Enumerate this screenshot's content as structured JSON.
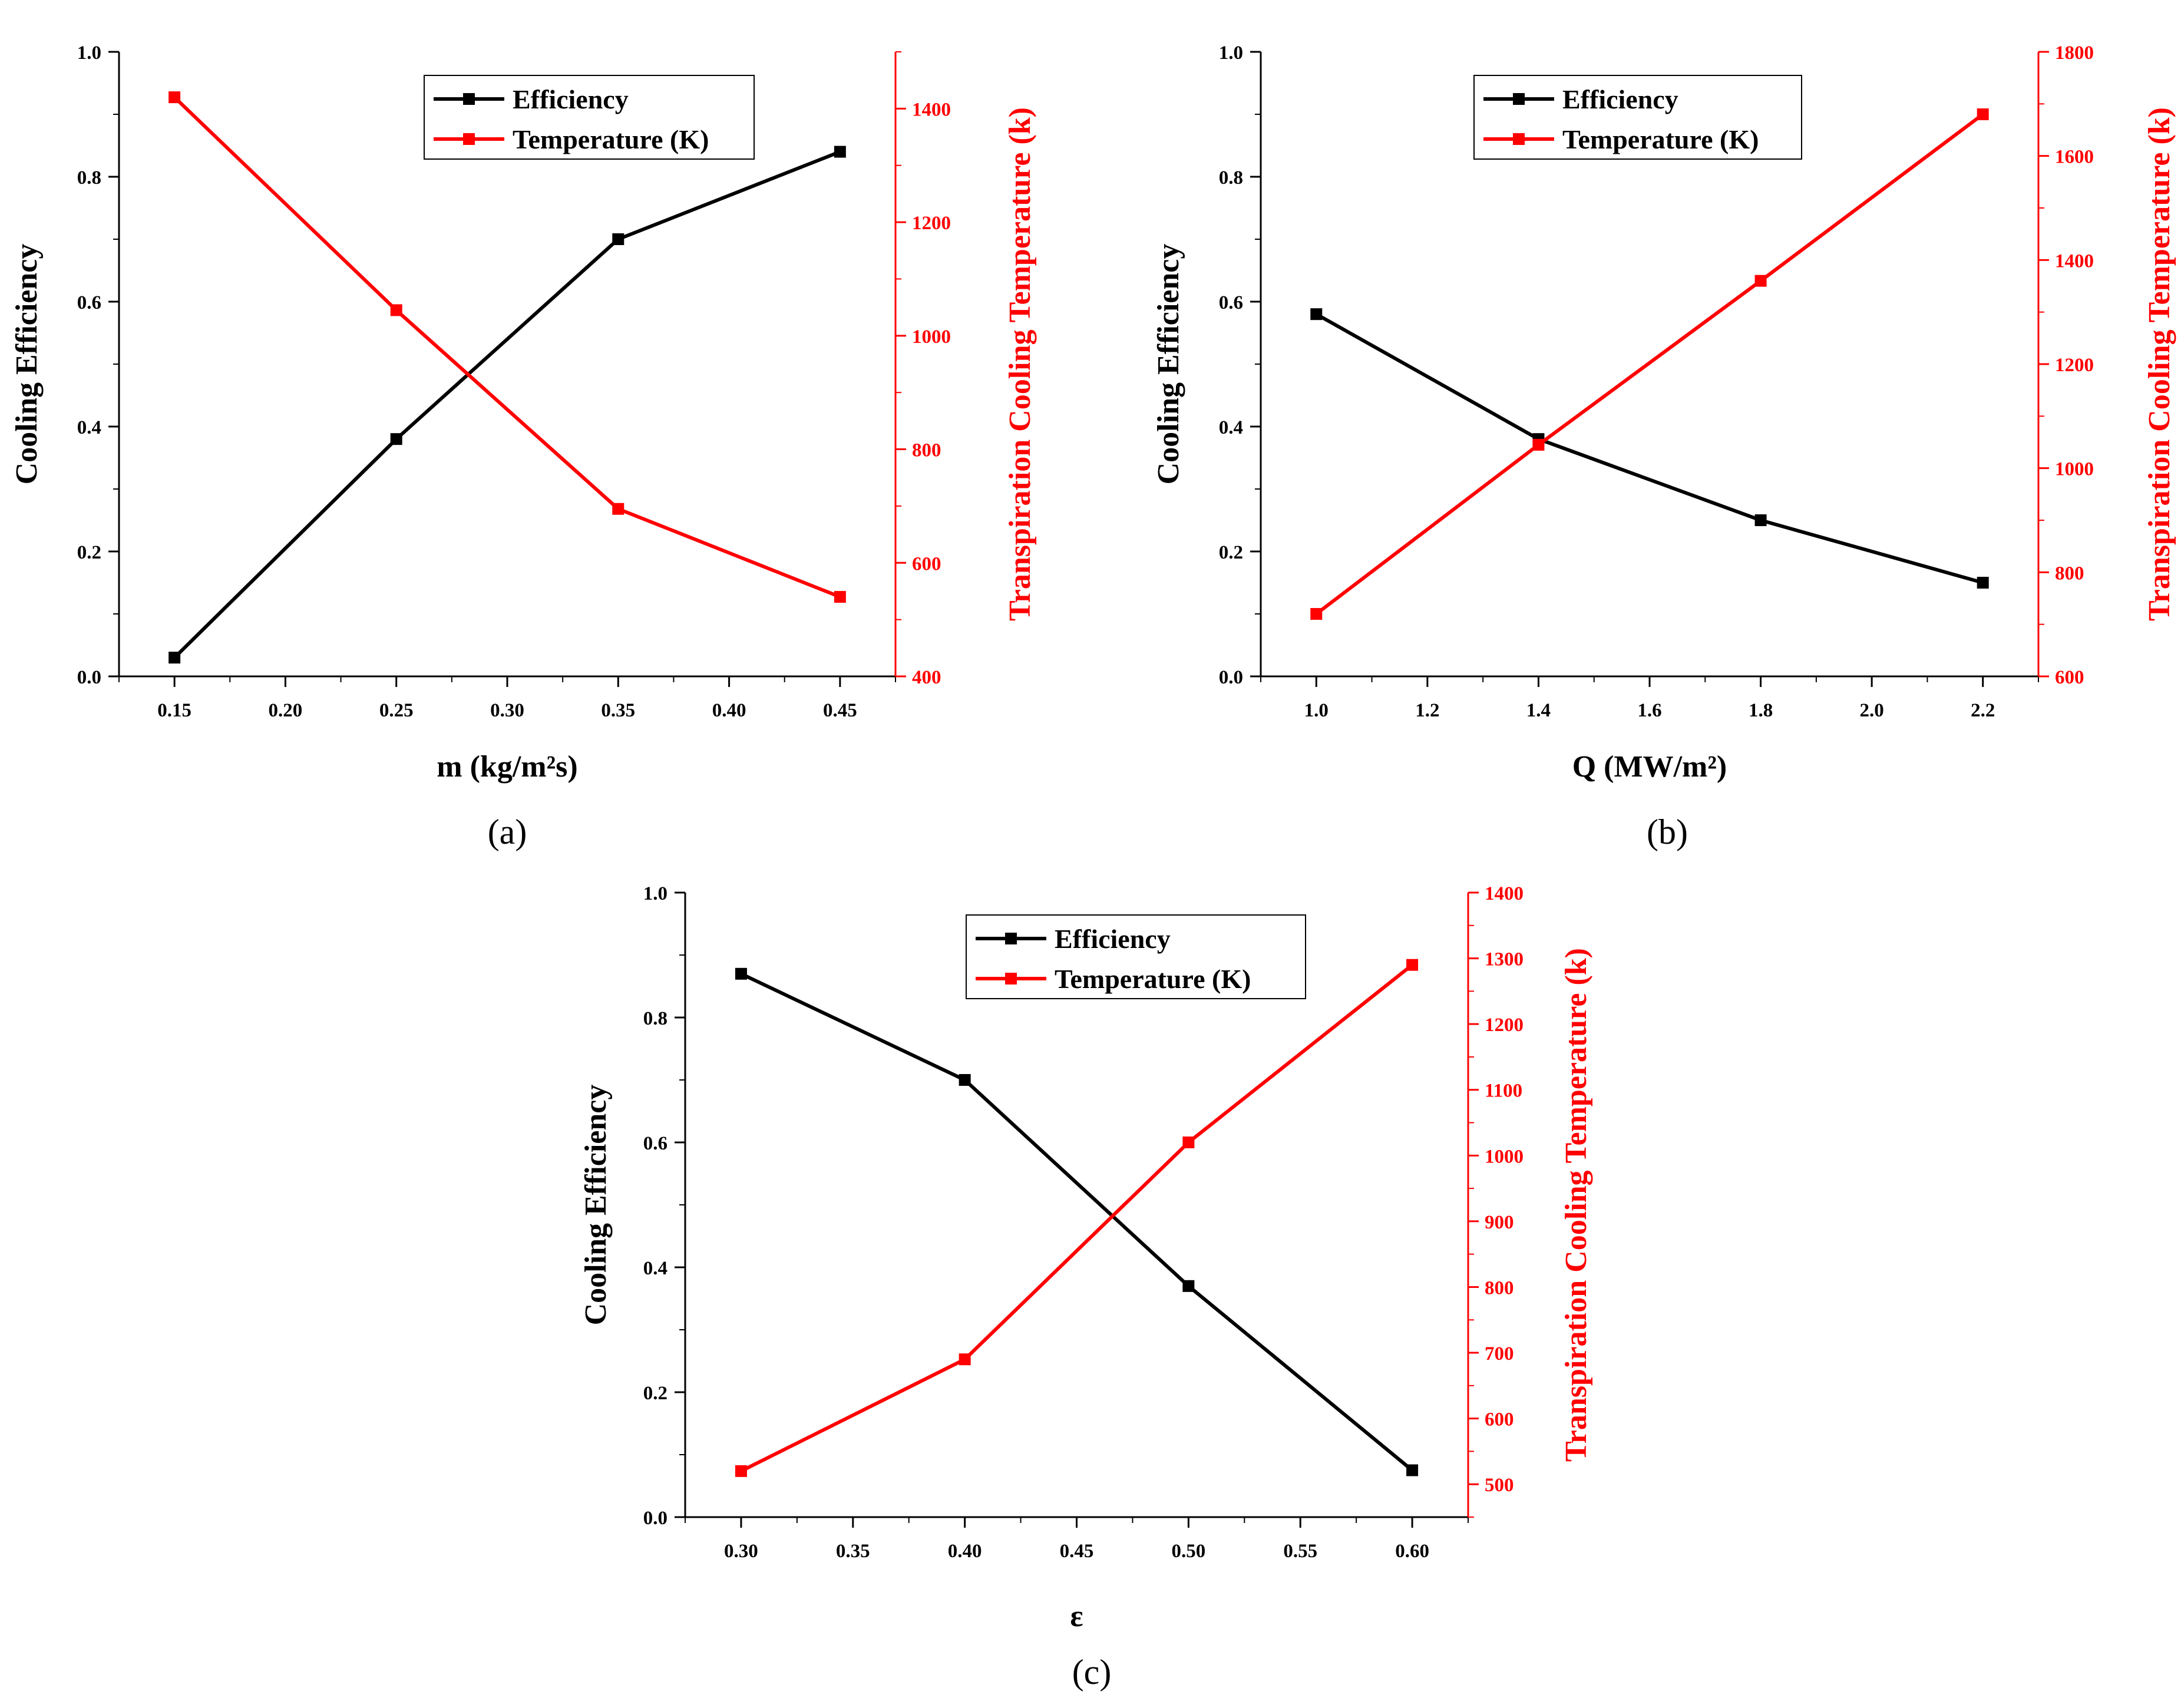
{
  "colors": {
    "efficiency": "#000000",
    "temperature": "#ff0000"
  },
  "chart_data": [
    {
      "type": "line",
      "panel": "a",
      "caption": "(a)",
      "xlabel": "m (kg/m²s)",
      "ylabel": "Cooling Efficiency",
      "y2label": "Transpiration Cooling Temperature (k)",
      "legend": [
        "Efficiency",
        "Temperature (K)"
      ],
      "legend_position": "top-right",
      "xlim": [
        0.125,
        0.475
      ],
      "ylim": [
        0,
        1.0
      ],
      "y2lim": [
        400,
        1500
      ],
      "x_ticks": [
        "0.15",
        "0.20",
        "0.25",
        "0.30",
        "0.35",
        "0.40",
        "0.45"
      ],
      "y_ticks": [
        "0.0",
        "0.2",
        "0.4",
        "0.6",
        "0.8",
        "1.0"
      ],
      "y2_ticks": [
        "400",
        "600",
        "800",
        "1000",
        "1200",
        "1400"
      ],
      "series": [
        {
          "name": "Efficiency",
          "axis": "left",
          "x": [
            0.15,
            0.25,
            0.35,
            0.45
          ],
          "values": [
            0.03,
            0.38,
            0.7,
            0.84
          ]
        },
        {
          "name": "Temperature (K)",
          "axis": "right",
          "x": [
            0.15,
            0.25,
            0.35,
            0.45
          ],
          "values": [
            1420,
            1045,
            695,
            540
          ]
        }
      ]
    },
    {
      "type": "line",
      "panel": "b",
      "caption": "(b)",
      "xlabel": "Q (MW/m²)",
      "ylabel": "Cooling Efficiency",
      "y2label": "Transpiration Cooling Temperature (k)",
      "legend": [
        "Efficiency",
        "Temperature (K)"
      ],
      "legend_position": "top-right",
      "xlim": [
        0.9,
        2.3
      ],
      "ylim": [
        0,
        1.0
      ],
      "y2lim": [
        600,
        1800
      ],
      "x_ticks": [
        "1.0",
        "1.2",
        "1.4",
        "1.6",
        "1.8",
        "2.0",
        "2.2"
      ],
      "y_ticks": [
        "0.0",
        "0.2",
        "0.4",
        "0.6",
        "0.8",
        "1.0"
      ],
      "y2_ticks": [
        "600",
        "800",
        "1000",
        "1200",
        "1400",
        "1600",
        "1800"
      ],
      "series": [
        {
          "name": "Efficiency",
          "axis": "left",
          "x": [
            1.0,
            1.4,
            1.8,
            2.2
          ],
          "values": [
            0.58,
            0.38,
            0.25,
            0.15
          ]
        },
        {
          "name": "Temperature (K)",
          "axis": "right",
          "x": [
            1.0,
            1.4,
            1.8,
            2.2
          ],
          "values": [
            720,
            1045,
            1360,
            1680
          ]
        }
      ]
    },
    {
      "type": "line",
      "panel": "c",
      "caption": "(c)",
      "xlabel": "ε",
      "ylabel": "Cooling Efficiency",
      "y2label": "Transpiration Cooling Temperature (k)",
      "legend": [
        "Efficiency",
        "Temperature (K)"
      ],
      "legend_position": "top-right",
      "xlim": [
        0.275,
        0.625
      ],
      "ylim": [
        0,
        1.0
      ],
      "y2lim": [
        450,
        1400
      ],
      "x_ticks": [
        "0.30",
        "0.35",
        "0.40",
        "0.45",
        "0.50",
        "0.55",
        "0.60"
      ],
      "y_ticks": [
        "0.0",
        "0.2",
        "0.4",
        "0.6",
        "0.8",
        "1.0"
      ],
      "y2_ticks": [
        "500",
        "600",
        "700",
        "800",
        "900",
        "1000",
        "1100",
        "1200",
        "1300",
        "1400"
      ],
      "series": [
        {
          "name": "Efficiency",
          "axis": "left",
          "x": [
            0.3,
            0.4,
            0.5,
            0.6
          ],
          "values": [
            0.87,
            0.7,
            0.37,
            0.075
          ]
        },
        {
          "name": "Temperature (K)",
          "axis": "right",
          "x": [
            0.3,
            0.4,
            0.5,
            0.6
          ],
          "values": [
            520,
            690,
            1020,
            1290
          ]
        }
      ]
    }
  ]
}
